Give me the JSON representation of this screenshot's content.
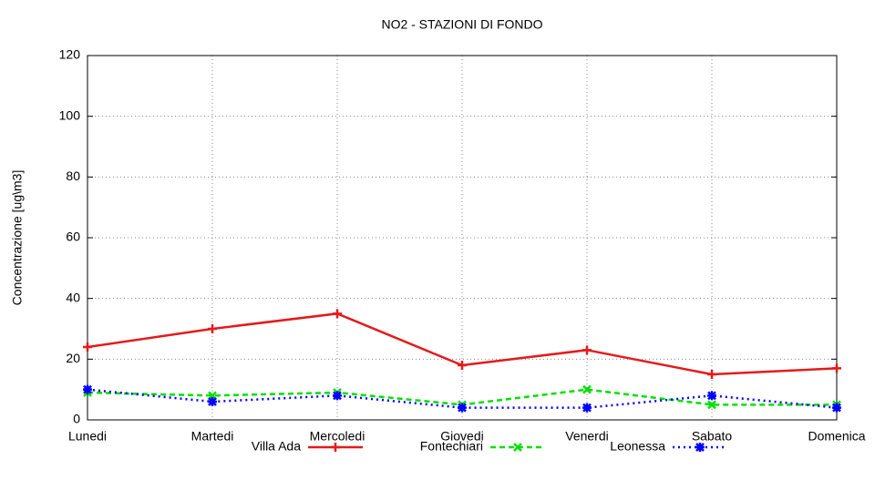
{
  "chart_data": {
    "type": "line",
    "title": "NO2 - STAZIONI DI FONDO",
    "y_label": "Concentrazione [ug\\m3]",
    "categories": [
      "Lunedi",
      "Martedi",
      "Mercoledi",
      "Giovedi",
      "Venerdi",
      "Sabato",
      "Domenica"
    ],
    "series": [
      {
        "name": "Villa Ada",
        "color": "#e41a1c",
        "values": [
          24,
          30,
          35,
          18,
          23,
          15,
          17
        ]
      },
      {
        "name": "Fontechiari",
        "color": "#00e000",
        "values": [
          9,
          8,
          9,
          5,
          10,
          5,
          5
        ]
      },
      {
        "name": "Leonessa",
        "color": "#0000ff",
        "values": [
          10,
          6,
          8,
          4,
          4,
          8,
          4
        ]
      }
    ],
    "ylim": [
      0,
      120
    ],
    "yticks": [
      0,
      20,
      40,
      60,
      80,
      100,
      120
    ],
    "grid": true
  }
}
